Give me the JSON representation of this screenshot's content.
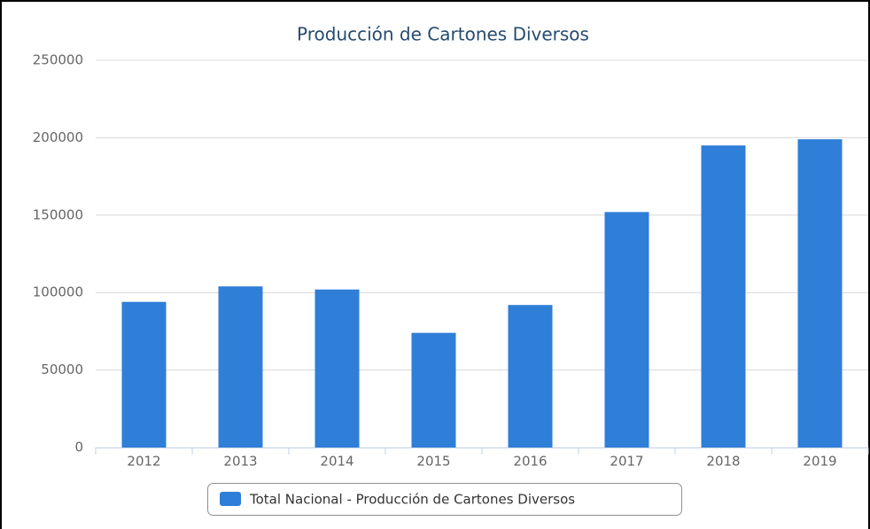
{
  "chart_data": {
    "type": "bar",
    "title": "Producción de Cartones Diversos",
    "categories": [
      "2012",
      "2013",
      "2014",
      "2015",
      "2016",
      "2017",
      "2018",
      "2019"
    ],
    "series": [
      {
        "name": "Total Nacional - Producción de Cartones Diversos",
        "color": "#2f7ed8",
        "values": [
          94000,
          104000,
          102000,
          74000,
          92000,
          152000,
          195000,
          199000
        ]
      }
    ],
    "ylim": [
      0,
      250000
    ],
    "yticks": [
      0,
      50000,
      100000,
      150000,
      200000,
      250000
    ],
    "grid": true
  }
}
